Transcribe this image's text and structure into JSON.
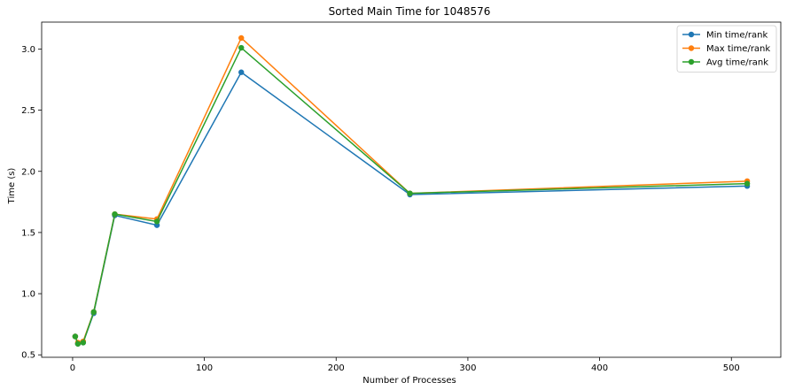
{
  "chart_data": {
    "type": "line",
    "title": "Sorted Main Time for 1048576",
    "xlabel": "Number of Processes",
    "ylabel": "Time (s)",
    "x": [
      2,
      4,
      8,
      16,
      32,
      64,
      128,
      256,
      512
    ],
    "xlim": [
      -23.5,
      537.5
    ],
    "ylim": [
      0.48,
      3.22
    ],
    "xticks": [
      0,
      100,
      200,
      300,
      400,
      500
    ],
    "yticks": [
      0.5,
      1.0,
      1.5,
      2.0,
      2.5,
      3.0
    ],
    "xtick_labels": [
      "0",
      "100",
      "200",
      "300",
      "400",
      "500"
    ],
    "ytick_labels": [
      "0.5",
      "1.0",
      "1.5",
      "2.0",
      "2.5",
      "3.0"
    ],
    "grid": false,
    "legend_position": "top-right",
    "series": [
      {
        "name": "Min time/rank",
        "color": "#1f77b4",
        "values": [
          0.65,
          0.59,
          0.6,
          0.84,
          1.64,
          1.56,
          2.81,
          1.81,
          1.88
        ]
      },
      {
        "name": "Max time/rank",
        "color": "#ff7f0e",
        "values": [
          0.65,
          0.6,
          0.61,
          0.85,
          1.65,
          1.61,
          3.09,
          1.82,
          1.92
        ]
      },
      {
        "name": "Avg time/rank",
        "color": "#2ca02c",
        "values": [
          0.65,
          0.59,
          0.6,
          0.85,
          1.65,
          1.59,
          3.01,
          1.82,
          1.9
        ]
      }
    ]
  }
}
